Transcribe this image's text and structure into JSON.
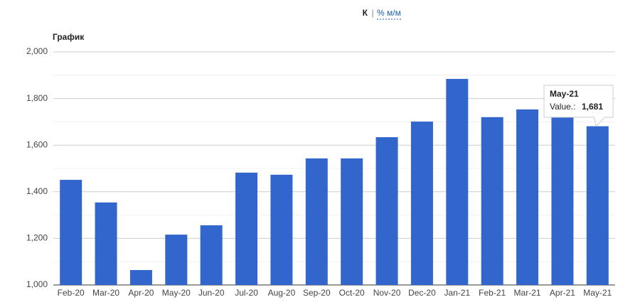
{
  "header": {
    "mode": "К",
    "separator": "|",
    "link": "% м/м"
  },
  "chart_data": {
    "type": "bar",
    "title": "График",
    "categories": [
      "Feb-20",
      "Mar-20",
      "Apr-20",
      "May-20",
      "Jun-20",
      "Jul-20",
      "Aug-20",
      "Sep-20",
      "Oct-20",
      "Nov-20",
      "Dec-20",
      "Jan-21",
      "Feb-21",
      "Mar-21",
      "Apr-21",
      "May-21"
    ],
    "values": [
      1451,
      1354,
      1064,
      1216,
      1256,
      1482,
      1473,
      1543,
      1543,
      1634,
      1701,
      1884,
      1720,
      1753,
      1720,
      1681
    ],
    "color": "#3366cc",
    "ylim": [
      1000,
      2000
    ],
    "yticks": [
      {
        "value": 1000,
        "label": "1,000"
      },
      {
        "value": 1200,
        "label": "1,200"
      },
      {
        "value": 1400,
        "label": "1,400"
      },
      {
        "value": 1600,
        "label": "1,600"
      },
      {
        "value": 1800,
        "label": "1,800"
      },
      {
        "value": 2000,
        "label": "2,000"
      }
    ],
    "minor_yticks": [
      1100,
      1300,
      1500,
      1700,
      1900
    ],
    "grid": true,
    "tooltip": {
      "category": "May-21",
      "label": "Value.:",
      "value": "1,681"
    }
  }
}
